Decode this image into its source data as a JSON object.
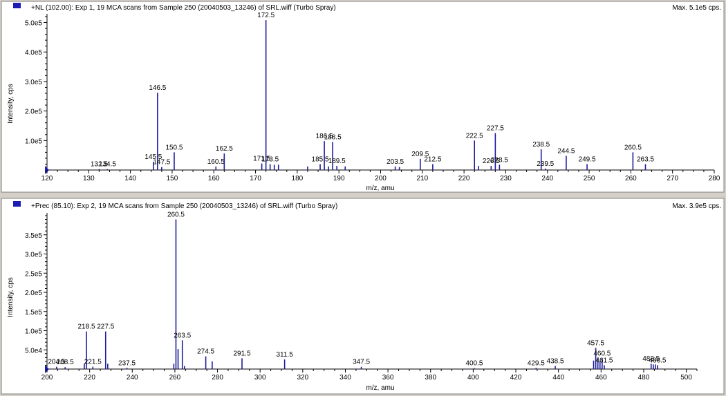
{
  "colors": {
    "bar": "#1c1c9c",
    "panel_bg": "#ffffff",
    "frame": "#d4d0c8",
    "axis": "#000000",
    "marker": "#1c1cb4"
  },
  "chart_data": [
    {
      "type": "bar",
      "header": "+NL (102.00): Exp 1, 19 MCA scans from Sample 250 (20040503_13246) of SRL.wiff (Turbo Spray)",
      "max_label": "Max. 5.1e5 cps.",
      "xlabel": "m/z, amu",
      "ylabel": "Intensity, cps",
      "xlim": [
        120,
        280
      ],
      "ylim": [
        0,
        520000
      ],
      "xticks": [
        120,
        130,
        140,
        150,
        160,
        170,
        180,
        190,
        200,
        210,
        220,
        230,
        240,
        250,
        260,
        270,
        280
      ],
      "yticks": [
        {
          "value": 100000,
          "label": "1.0e5"
        },
        {
          "value": 200000,
          "label": "2.0e5"
        },
        {
          "value": 300000,
          "label": "3.0e5"
        },
        {
          "value": 400000,
          "label": "4.0e5"
        },
        {
          "value": 500000,
          "label": "5.0e5"
        }
      ],
      "peaks": [
        {
          "x": 132.5,
          "y": 3000,
          "label": "132.5"
        },
        {
          "x": 134.5,
          "y": 3000,
          "label": "134.5"
        },
        {
          "x": 145.5,
          "y": 28000,
          "label": "145.5"
        },
        {
          "x": 146.5,
          "y": 262000,
          "label": "146.5"
        },
        {
          "x": 147.5,
          "y": 10000,
          "label": "147.5"
        },
        {
          "x": 150.5,
          "y": 60000,
          "label": "150.5"
        },
        {
          "x": 160.5,
          "y": 12000,
          "label": "160.5"
        },
        {
          "x": 162.5,
          "y": 56000,
          "label": "162.5"
        },
        {
          "x": 171.5,
          "y": 22000,
          "label": "171.5"
        },
        {
          "x": 172.5,
          "y": 508000,
          "label": "172.5"
        },
        {
          "x": 173.5,
          "y": 20000,
          "label": "173.5"
        },
        {
          "x": 174.5,
          "y": 18000,
          "label": ""
        },
        {
          "x": 175.5,
          "y": 18000,
          "label": ""
        },
        {
          "x": 182.5,
          "y": 12000,
          "label": ""
        },
        {
          "x": 185.5,
          "y": 20000,
          "label": "185.5"
        },
        {
          "x": 186.5,
          "y": 98000,
          "label": "186.5"
        },
        {
          "x": 187.5,
          "y": 12000,
          "label": ""
        },
        {
          "x": 188.5,
          "y": 95000,
          "label": "188.5"
        },
        {
          "x": 189.5,
          "y": 14000,
          "label": "189.5"
        },
        {
          "x": 191.5,
          "y": 12000,
          "label": ""
        },
        {
          "x": 203.5,
          "y": 12000,
          "label": "203.5"
        },
        {
          "x": 204.5,
          "y": 10000,
          "label": ""
        },
        {
          "x": 209.5,
          "y": 38000,
          "label": "209.5"
        },
        {
          "x": 212.5,
          "y": 20000,
          "label": "212.5"
        },
        {
          "x": 222.5,
          "y": 100000,
          "label": "222.5"
        },
        {
          "x": 223.5,
          "y": 14000,
          "label": ""
        },
        {
          "x": 226.5,
          "y": 14000,
          "label": "226.5"
        },
        {
          "x": 227.5,
          "y": 125000,
          "label": "227.5"
        },
        {
          "x": 228.5,
          "y": 18000,
          "label": "228.5"
        },
        {
          "x": 238.5,
          "y": 70000,
          "label": "238.5"
        },
        {
          "x": 239.5,
          "y": 5000,
          "label": "239.5"
        },
        {
          "x": 244.5,
          "y": 48000,
          "label": "244.5"
        },
        {
          "x": 249.5,
          "y": 20000,
          "label": "249.5"
        },
        {
          "x": 260.5,
          "y": 60000,
          "label": "260.5"
        },
        {
          "x": 263.5,
          "y": 20000,
          "label": "263.5"
        }
      ]
    },
    {
      "type": "bar",
      "header": "+Prec (85.10): Exp 2, 19 MCA scans from Sample 250 (20040503_13246) of SRL.wiff (Turbo Spray)",
      "max_label": "Max. 3.9e5 cps.",
      "xlabel": "m/z, amu",
      "ylabel": "Intensity, cps",
      "xlim": [
        200,
        505
      ],
      "ylim": [
        0,
        400000
      ],
      "xticks": [
        200,
        220,
        240,
        260,
        280,
        300,
        320,
        340,
        360,
        380,
        400,
        420,
        440,
        460,
        480,
        500
      ],
      "yticks": [
        {
          "value": 50000,
          "label": "5.0e4"
        },
        {
          "value": 100000,
          "label": "1.0e5"
        },
        {
          "value": 150000,
          "label": "1.5e5"
        },
        {
          "value": 200000,
          "label": "2.0e5"
        },
        {
          "value": 250000,
          "label": "2.5e5"
        },
        {
          "value": 300000,
          "label": "3.0e5"
        },
        {
          "value": 350000,
          "label": "3.5e5"
        }
      ],
      "peaks": [
        {
          "x": 204.5,
          "y": 6000,
          "label": "204.5"
        },
        {
          "x": 208.5,
          "y": 5000,
          "label": "208.5"
        },
        {
          "x": 218.5,
          "y": 98000,
          "label": "218.5"
        },
        {
          "x": 217.5,
          "y": 14000,
          "label": ""
        },
        {
          "x": 221.5,
          "y": 6000,
          "label": "221.5"
        },
        {
          "x": 227.5,
          "y": 98000,
          "label": "227.5"
        },
        {
          "x": 228.5,
          "y": 14000,
          "label": ""
        },
        {
          "x": 237.5,
          "y": 3000,
          "label": "237.5"
        },
        {
          "x": 259.5,
          "y": 14000,
          "label": ""
        },
        {
          "x": 260.5,
          "y": 390000,
          "label": "260.5"
        },
        {
          "x": 261.5,
          "y": 52000,
          "label": ""
        },
        {
          "x": 263.5,
          "y": 75000,
          "label": "263.5"
        },
        {
          "x": 264.5,
          "y": 8000,
          "label": ""
        },
        {
          "x": 274.5,
          "y": 33000,
          "label": "274.5"
        },
        {
          "x": 277.5,
          "y": 20000,
          "label": ""
        },
        {
          "x": 291.5,
          "y": 28000,
          "label": "291.5"
        },
        {
          "x": 311.5,
          "y": 25000,
          "label": "311.5"
        },
        {
          "x": 347.5,
          "y": 6000,
          "label": "347.5"
        },
        {
          "x": 400.5,
          "y": 2500,
          "label": "400.5"
        },
        {
          "x": 429.5,
          "y": 3000,
          "label": "429.5"
        },
        {
          "x": 438.5,
          "y": 8000,
          "label": "438.5"
        },
        {
          "x": 456.5,
          "y": 22000,
          "label": ""
        },
        {
          "x": 457.5,
          "y": 55000,
          "label": "457.5"
        },
        {
          "x": 458.5,
          "y": 30000,
          "label": ""
        },
        {
          "x": 459.5,
          "y": 20000,
          "label": ""
        },
        {
          "x": 460.5,
          "y": 28000,
          "label": "460.5"
        },
        {
          "x": 461.5,
          "y": 10000,
          "label": "461.5"
        },
        {
          "x": 483.5,
          "y": 14000,
          "label": "483.5"
        },
        {
          "x": 484.5,
          "y": 12000,
          "label": ""
        },
        {
          "x": 485.5,
          "y": 12000,
          "label": ""
        },
        {
          "x": 486.5,
          "y": 10000,
          "label": "486.5"
        }
      ]
    }
  ]
}
